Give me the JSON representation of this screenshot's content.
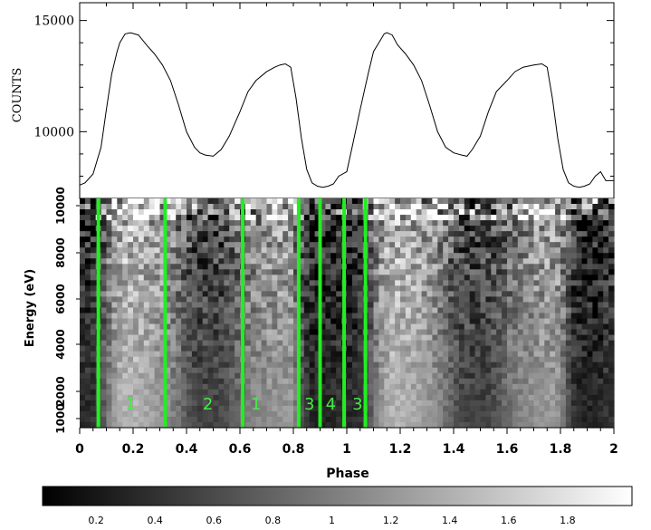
{
  "chart_data": [
    {
      "type": "line",
      "ylabel": "COUNTS",
      "ylim": [
        7000,
        15800
      ],
      "yticks": [
        10000,
        15000
      ],
      "xlim": [
        0,
        2
      ],
      "series": [
        {
          "x": [
            0.0,
            0.02,
            0.05,
            0.08,
            0.1,
            0.12,
            0.14,
            0.15,
            0.17,
            0.19,
            0.22,
            0.25,
            0.28,
            0.31,
            0.34,
            0.37,
            0.4,
            0.43,
            0.45,
            0.47,
            0.5,
            0.53,
            0.56,
            0.6,
            0.63,
            0.66,
            0.7,
            0.73,
            0.75,
            0.77,
            0.79,
            0.81,
            0.83,
            0.85,
            0.87,
            0.89,
            0.91,
            0.93,
            0.95,
            0.97,
            1.0,
            1.02,
            1.05,
            1.08,
            1.1,
            1.12,
            1.14,
            1.15,
            1.17,
            1.19,
            1.22,
            1.25,
            1.28,
            1.31,
            1.34,
            1.37,
            1.4,
            1.43,
            1.45,
            1.47,
            1.5,
            1.53,
            1.56,
            1.6,
            1.63,
            1.66,
            1.7,
            1.73,
            1.75,
            1.77,
            1.79,
            1.81,
            1.83,
            1.85,
            1.87,
            1.89,
            1.91,
            1.93,
            1.95,
            1.97,
            2.0
          ],
          "y": [
            7600,
            7700,
            8100,
            9300,
            11000,
            12600,
            13600,
            14000,
            14400,
            14450,
            14350,
            13900,
            13500,
            13000,
            12300,
            11200,
            10000,
            9300,
            9050,
            8950,
            8900,
            9200,
            9800,
            10900,
            11800,
            12300,
            12700,
            12900,
            13000,
            13050,
            12900,
            11500,
            9700,
            8300,
            7700,
            7550,
            7500,
            7550,
            7650,
            8000,
            8200,
            9300,
            11000,
            12600,
            13600,
            14000,
            14400,
            14450,
            14350,
            13900,
            13500,
            13000,
            12300,
            11200,
            10000,
            9300,
            9050,
            8950,
            8900,
            9200,
            9800,
            10900,
            11800,
            12300,
            12700,
            12900,
            13000,
            13050,
            12900,
            11500,
            9700,
            8300,
            7700,
            7550,
            7500,
            7550,
            7650,
            8000,
            8200,
            7800,
            7800
          ]
        }
      ]
    },
    {
      "type": "heatmap",
      "xlabel": "Phase",
      "ylabel": "Energy (eV)",
      "xlim": [
        0,
        2
      ],
      "xticks": [
        "0",
        "0.2",
        "0.4",
        "0.6",
        "0.8",
        "1",
        "1.2",
        "1.4",
        "1.6",
        "1.8",
        "2"
      ],
      "yticks": [
        "1000",
        "2000",
        "4000",
        "6000",
        "8000",
        "10000"
      ],
      "phase_boundaries": [
        0.07,
        0.32,
        0.61,
        0.82,
        0.9,
        0.99,
        1.07
      ],
      "region_labels": [
        "1",
        "2",
        "1",
        "3",
        "4",
        "3"
      ],
      "region_label_phases": [
        0.19,
        0.48,
        0.66,
        0.86,
        0.94,
        1.04
      ],
      "colorbar": {
        "range": [
          0,
          2
        ],
        "ticks": [
          "0.2",
          "0.4",
          "0.6",
          "0.8",
          "1",
          "1.2",
          "1.4",
          "1.6",
          "1.8"
        ]
      }
    }
  ],
  "colors": {
    "line": "#000000",
    "boundary": "#22ee22",
    "label": "#44ee44"
  }
}
